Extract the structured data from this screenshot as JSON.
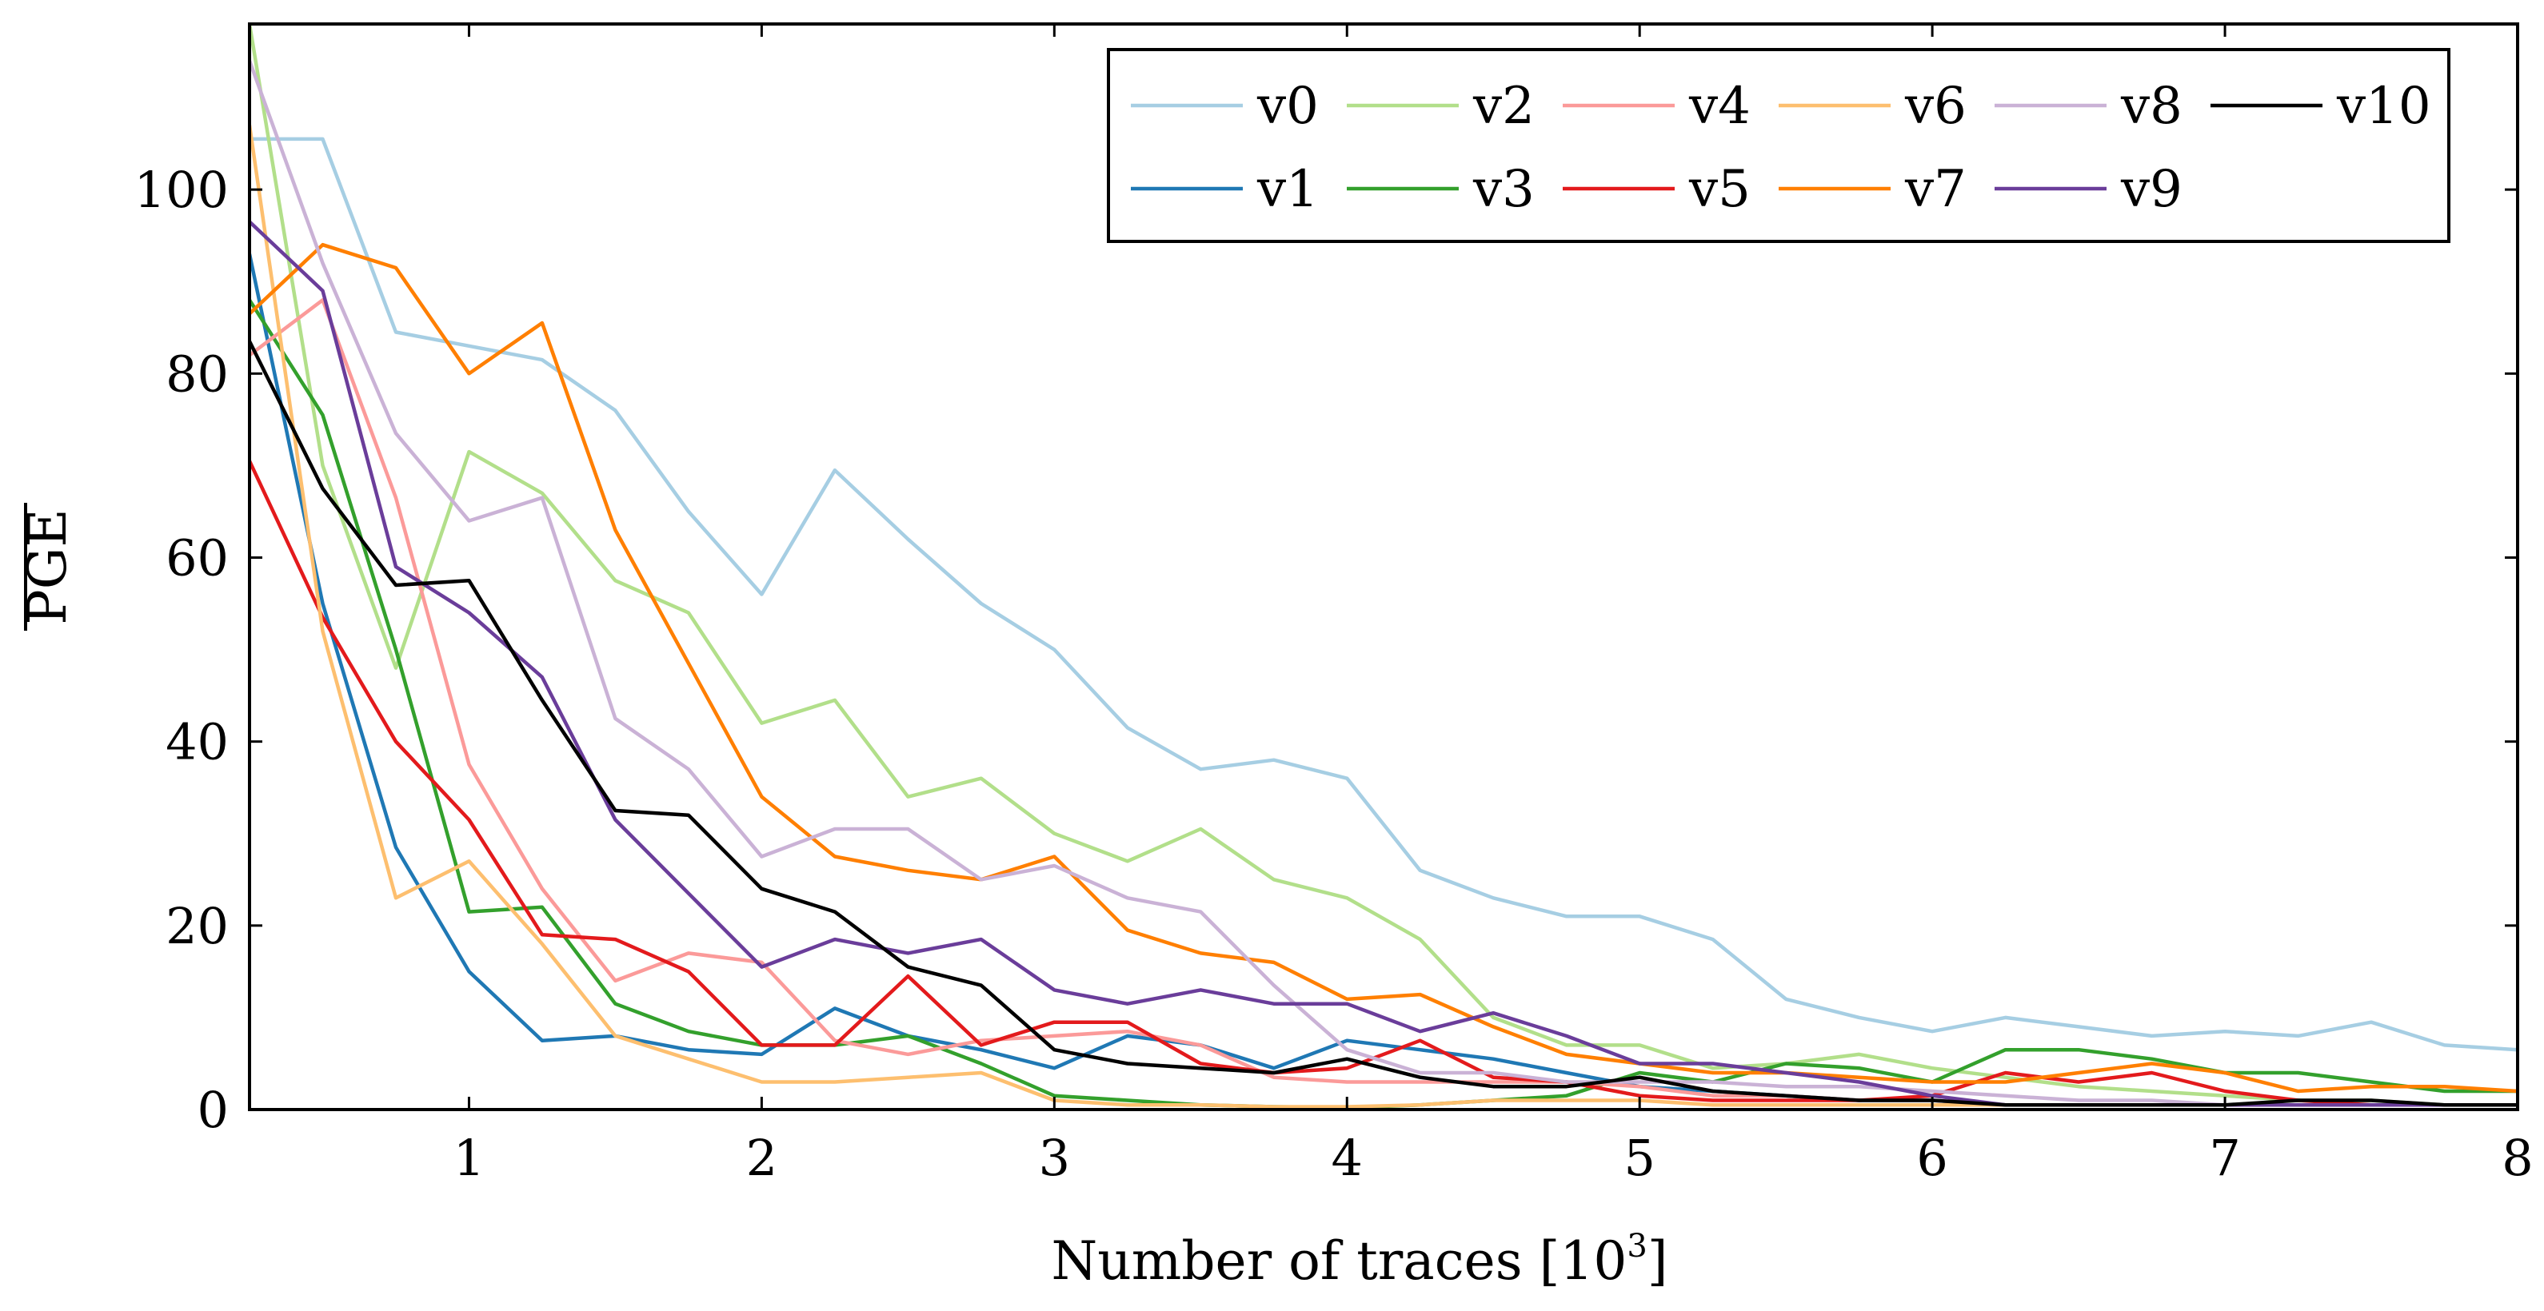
{
  "chart_data": {
    "type": "line",
    "title": "",
    "xlabel": "Number of traces [10",
    "xlabel_sup": "3",
    "xlabel_end": "]",
    "ylabel": "PGE",
    "xlim": [
      0.25,
      8
    ],
    "ylim": [
      0,
      118
    ],
    "xticks": [
      1,
      2,
      3,
      4,
      5,
      6,
      7,
      8
    ],
    "xtick_labels": [
      "1",
      "2",
      "3",
      "4",
      "5",
      "6",
      "7",
      "8"
    ],
    "yticks": [
      0,
      20,
      40,
      60,
      80,
      100
    ],
    "ytick_labels": [
      "0",
      "20",
      "40",
      "60",
      "80",
      "100"
    ],
    "legend_position": "top-right",
    "x": [
      0.25,
      0.5,
      0.75,
      1.0,
      1.25,
      1.5,
      1.75,
      2.0,
      2.25,
      2.5,
      2.75,
      3.0,
      3.25,
      3.5,
      3.75,
      4.0,
      4.25,
      4.5,
      4.75,
      5.0,
      5.25,
      5.5,
      5.75,
      6.0,
      6.25,
      6.5,
      6.75,
      7.0,
      7.25,
      7.5,
      7.75,
      8.0
    ],
    "series": [
      {
        "name": "v0",
        "color": "#a6cee3",
        "values": [
          105.5,
          105.5,
          84.5,
          83,
          81.5,
          76,
          65,
          56,
          69.5,
          62,
          55,
          50,
          41.5,
          37,
          38,
          36,
          26,
          23,
          21,
          21,
          18.5,
          12,
          10,
          8.5,
          10,
          9,
          8,
          8.5,
          8,
          9.5,
          7,
          6.5
        ]
      },
      {
        "name": "v1",
        "color": "#1f78b4",
        "values": [
          93,
          55,
          28.5,
          15,
          7.5,
          8,
          6.5,
          6,
          11,
          8,
          6.5,
          4.5,
          8,
          7,
          4.5,
          7.5,
          6.5,
          5.5,
          4,
          2.5,
          2,
          1.5,
          1,
          1,
          0.5,
          0.5,
          0.5,
          0.5,
          0.5,
          0.5,
          0.5,
          0.5
        ]
      },
      {
        "name": "v2",
        "color": "#b2df8a",
        "values": [
          118,
          70,
          48,
          71.5,
          67,
          57.5,
          54,
          42,
          44.5,
          34,
          36,
          30,
          27,
          30.5,
          25,
          23,
          18.5,
          10,
          7,
          7,
          4.5,
          5,
          6,
          4.5,
          3.5,
          2.5,
          2,
          1.5,
          1,
          1,
          0.5,
          0.5
        ]
      },
      {
        "name": "v3",
        "color": "#33a02c",
        "values": [
          88,
          75.5,
          50,
          21.5,
          22,
          11.5,
          8.5,
          7,
          7,
          8,
          5,
          1.5,
          1,
          0.5,
          0.3,
          0.2,
          0.5,
          1,
          1.5,
          4,
          3,
          5,
          4.5,
          3,
          6.5,
          6.5,
          5.5,
          4,
          4,
          3,
          2,
          2
        ]
      },
      {
        "name": "v4",
        "color": "#fb9a99",
        "values": [
          82,
          88,
          66.5,
          37.5,
          24,
          14,
          17,
          16,
          7.5,
          6,
          7.5,
          8,
          8.5,
          7,
          3.5,
          3,
          3,
          3,
          3,
          2.5,
          1.5,
          1.5,
          1,
          1,
          0.5,
          0.5,
          0.5,
          0.5,
          0.5,
          0.5,
          0.5,
          0.5
        ]
      },
      {
        "name": "v5",
        "color": "#e31a1c",
        "values": [
          70.5,
          53.5,
          40,
          31.5,
          19,
          18.5,
          15,
          7,
          7,
          14.5,
          7,
          9.5,
          9.5,
          5,
          4,
          4.5,
          7.5,
          3.5,
          3,
          1.5,
          1,
          1,
          1,
          1.5,
          4,
          3,
          4,
          2,
          1,
          0.5,
          0.5,
          0.5
        ]
      },
      {
        "name": "v6",
        "color": "#fdbf6f",
        "values": [
          107,
          52,
          23,
          27,
          18,
          8,
          5.5,
          3,
          3,
          3.5,
          4,
          1,
          0.5,
          0.5,
          0.3,
          0.3,
          0.5,
          1,
          1,
          1,
          0.5,
          0.5,
          0.5,
          0.5,
          0.5,
          0.5,
          0.5,
          0.5,
          0.5,
          0.5,
          0.5,
          0.5
        ]
      },
      {
        "name": "v7",
        "color": "#ff7f00",
        "values": [
          86.5,
          94,
          91.5,
          80,
          85.5,
          63,
          48.5,
          34,
          27.5,
          26,
          25,
          27.5,
          19.5,
          17,
          16,
          12,
          12.5,
          9,
          6,
          5,
          4,
          4,
          3.5,
          3,
          3,
          4,
          5,
          4,
          2,
          2.5,
          2.5,
          2
        ]
      },
      {
        "name": "v8",
        "color": "#cab2d6",
        "values": [
          114,
          92,
          73.5,
          64,
          66.5,
          42.5,
          37,
          27.5,
          30.5,
          30.5,
          25,
          26.5,
          23,
          21.5,
          13.5,
          6.5,
          4,
          4,
          3,
          3,
          3,
          2.5,
          2.5,
          2,
          1.5,
          1,
          1,
          0.5,
          0.5,
          0.5,
          0.5,
          0.5
        ]
      },
      {
        "name": "v9",
        "color": "#6a3d9a",
        "values": [
          96.5,
          89,
          59,
          54,
          47,
          31.5,
          23.5,
          15.5,
          18.5,
          17,
          18.5,
          13,
          11.5,
          13,
          11.5,
          11.5,
          8.5,
          10.5,
          8,
          5,
          5,
          4,
          3,
          1.5,
          0.5,
          0.5,
          0.5,
          0.5,
          0.5,
          0.5,
          0.5,
          0.5
        ]
      },
      {
        "name": "v10",
        "color": "#000000",
        "values": [
          83.5,
          67.5,
          57,
          57.5,
          44.5,
          32.5,
          32,
          24,
          21.5,
          15.5,
          13.5,
          6.5,
          5,
          4.5,
          4,
          5.5,
          3.5,
          2.5,
          2.5,
          3.5,
          2,
          1.5,
          1,
          1,
          0.5,
          0.5,
          0.5,
          0.5,
          1,
          1,
          0.5,
          0.5
        ]
      }
    ]
  }
}
